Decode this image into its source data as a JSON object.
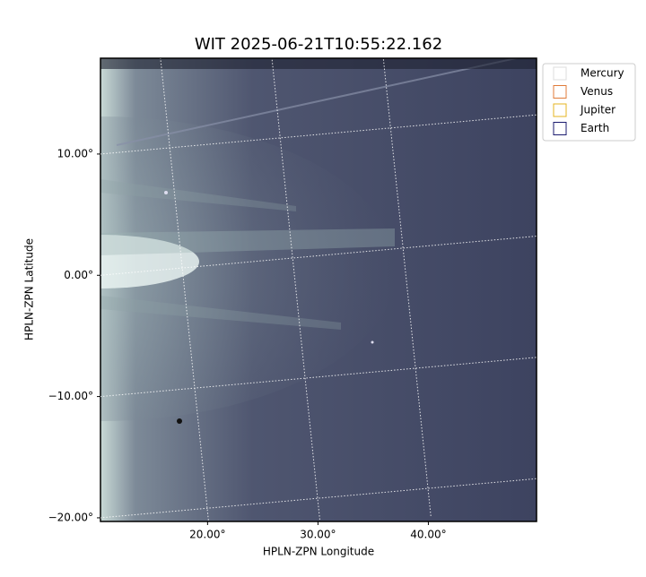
{
  "chart_data": {
    "type": "image",
    "title": "WIT 2025-06-21T10:55:22.162",
    "xlabel": "HPLN-ZPN Longitude",
    "ylabel": "HPLN-ZPN Latitude",
    "xlim": [
      10.3,
      49.8
    ],
    "ylim": [
      -20.3,
      17.9
    ],
    "xticks": [
      {
        "value": 20,
        "label": "20.00°"
      },
      {
        "value": 30,
        "label": "30.00°"
      },
      {
        "value": 40,
        "label": "40.00°"
      }
    ],
    "yticks": [
      {
        "value": -20,
        "label": "−20.00°"
      },
      {
        "value": -10,
        "label": "−10.00°"
      },
      {
        "value": 0,
        "label": "0.00°"
      },
      {
        "value": 10,
        "label": "10.00°"
      }
    ],
    "grid": true,
    "legend": "upper right outside",
    "series": [
      {
        "name": "Mercury",
        "color": "#dddddd"
      },
      {
        "name": "Venus",
        "color": "#e07b39"
      },
      {
        "name": "Jupiter",
        "color": "#e6b422"
      },
      {
        "name": "Earth",
        "color": "#1a1a6e"
      }
    ]
  }
}
